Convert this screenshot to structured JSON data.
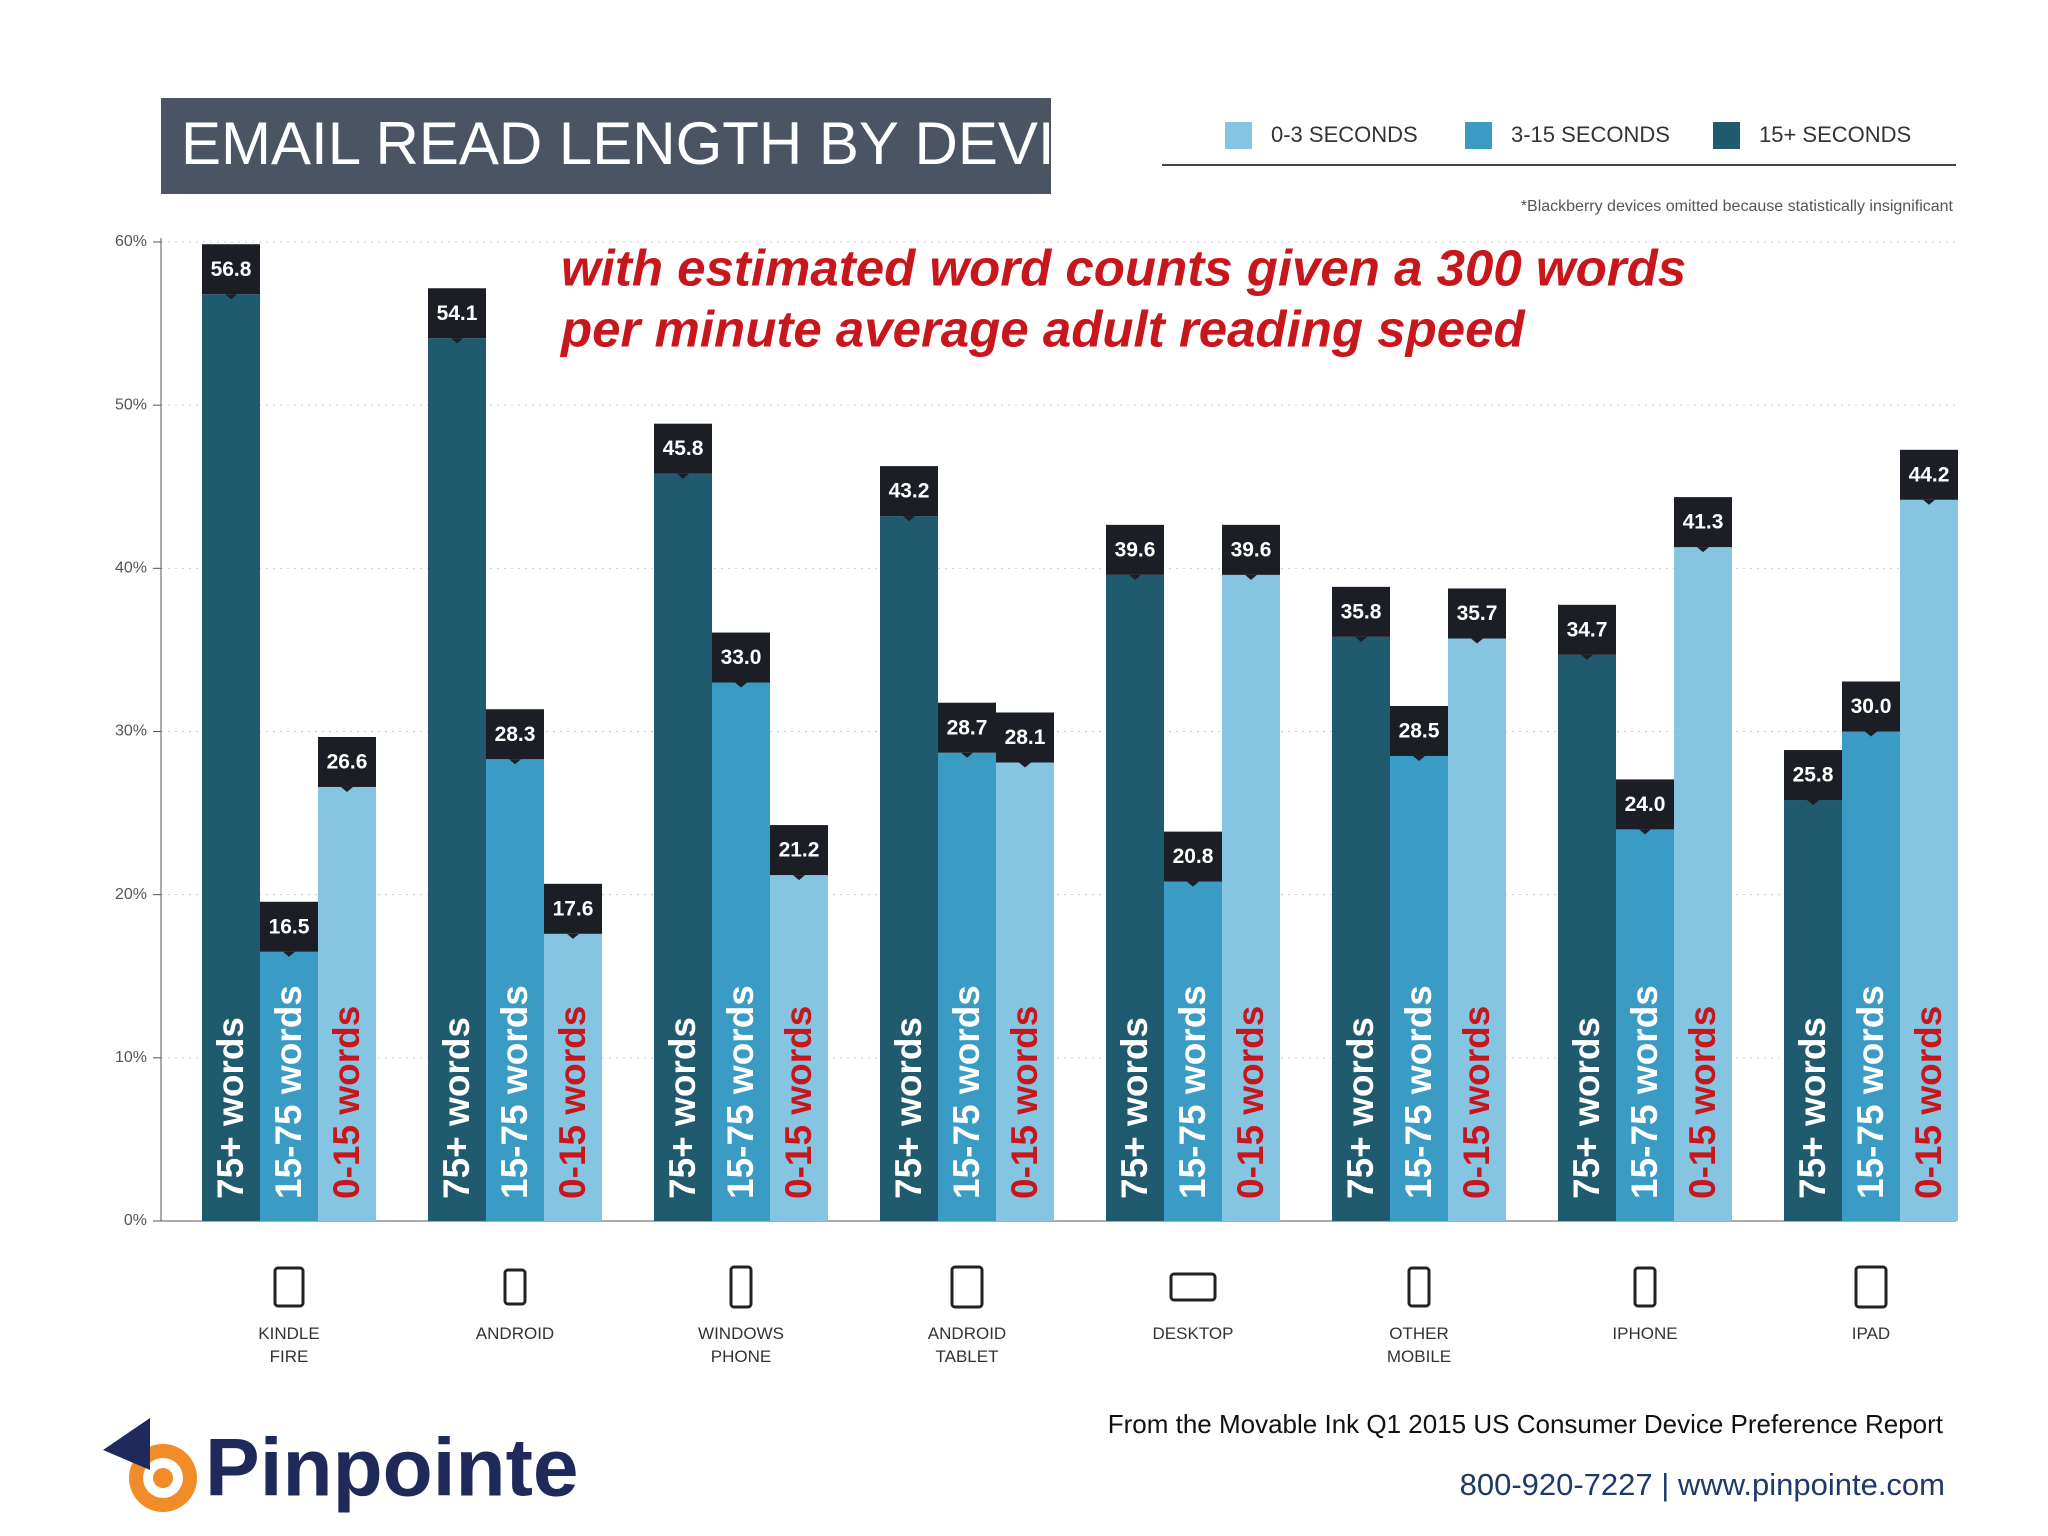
{
  "chart_data": {
    "type": "bar",
    "title": "EMAIL READ LENGTH BY DEVICE*",
    "annotation": [
      "with estimated word counts given a 300 words",
      "per minute average adult reading speed"
    ],
    "footnote": "*Blackberry devices omitted because statistically insignificant",
    "source": "From the Movable Ink Q1 2015 US Consumer Device Preference Report",
    "contact": "800-920-7227 | www.pinpointe.com",
    "brand": "Pinpointe",
    "categories": [
      "KINDLE FIRE",
      "ANDROID",
      "WINDOWS PHONE",
      "ANDROID TABLET",
      "DESKTOP",
      "OTHER MOBILE",
      "IPHONE",
      "IPAD"
    ],
    "series": [
      {
        "name": "0-3 SECONDS",
        "color": "#86c5e2",
        "bar_text": "0-15 words",
        "bar_text_color": "#c8161d",
        "values": [
          26.6,
          17.6,
          21.2,
          28.1,
          39.6,
          35.7,
          41.3,
          44.2
        ],
        "value_labels": [
          "26.6",
          "17.6",
          "21.2",
          "28.1",
          "39.6",
          "35.7",
          "41.3",
          "44.2"
        ]
      },
      {
        "name": "3-15 SECONDS",
        "color": "#3a9cc4",
        "bar_text": "15-75 words",
        "bar_text_color": "#ffffff",
        "values": [
          16.5,
          28.3,
          33.0,
          28.7,
          20.8,
          28.5,
          24.0,
          30.0
        ],
        "value_labels": [
          "16.5",
          "28.3",
          "33.0",
          "28.7",
          "20.8",
          "28.5",
          "24.0",
          "30.0"
        ]
      },
      {
        "name": "15+ SECONDS",
        "color": "#1f5a6e",
        "bar_text": "75+ words",
        "bar_text_color": "#ffffff",
        "values": [
          56.8,
          54.1,
          45.8,
          43.2,
          39.6,
          35.8,
          34.7,
          25.8
        ],
        "value_labels": [
          "56.8",
          "54.1",
          "45.8",
          "43.2",
          "39.6",
          "35.8",
          "34.7",
          "25.8"
        ]
      }
    ],
    "ylim": [
      0,
      60
    ],
    "yticks": [
      {
        "value": 0,
        "label": "0%"
      },
      {
        "value": 10,
        "label": "10%"
      },
      {
        "value": 20,
        "label": "20%"
      },
      {
        "value": 30,
        "label": "30%"
      },
      {
        "value": 40,
        "label": "40%"
      },
      {
        "value": 50,
        "label": "50%"
      },
      {
        "value": 60,
        "label": "60%"
      }
    ],
    "grid": true
  }
}
